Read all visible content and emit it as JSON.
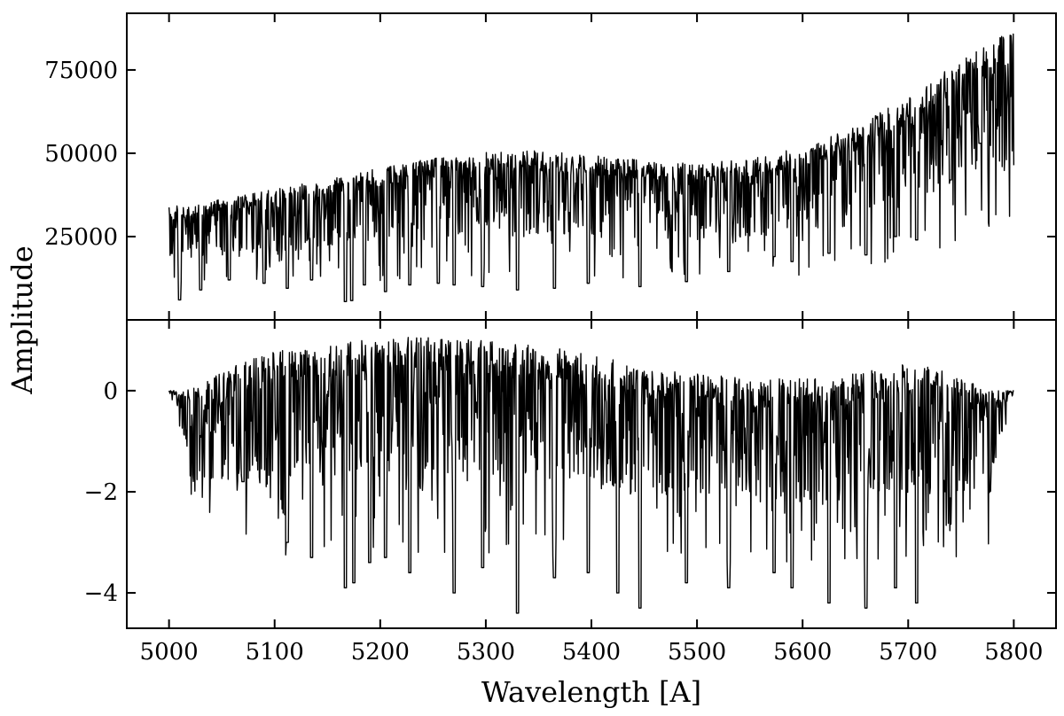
{
  "chart_data": {
    "type": "line",
    "xlabel": "Wavelength [A]",
    "ylabel": "Amplitude",
    "xlim": [
      4960,
      5840
    ],
    "x_ticks": [
      5000,
      5100,
      5200,
      5300,
      5400,
      5500,
      5600,
      5700,
      5800
    ],
    "x_range": [
      5000,
      5800
    ],
    "grid": false,
    "legend": "none",
    "line_color": "#000000",
    "panels": [
      {
        "ylim": [
          0,
          92000
        ],
        "y_ticks": [
          25000,
          50000,
          75000
        ],
        "continuum": [
          [
            5000,
            34500
          ],
          [
            5100,
            40000
          ],
          [
            5200,
            46500
          ],
          [
            5250,
            49500
          ],
          [
            5300,
            51500
          ],
          [
            5350,
            51800
          ],
          [
            5400,
            50500
          ],
          [
            5450,
            48800
          ],
          [
            5500,
            48000
          ],
          [
            5550,
            49500
          ],
          [
            5600,
            53000
          ],
          [
            5650,
            59000
          ],
          [
            5700,
            68500
          ],
          [
            5750,
            80000
          ],
          [
            5800,
            89000
          ]
        ],
        "absorption_lines": [
          [
            5010,
            6000
          ],
          [
            5030,
            9000
          ],
          [
            5057,
            12000
          ],
          [
            5090,
            11000
          ],
          [
            5112,
            9500
          ],
          [
            5135,
            12000
          ],
          [
            5167,
            5500
          ],
          [
            5173,
            5800
          ],
          [
            5185,
            10500
          ],
          [
            5205,
            8500
          ],
          [
            5228,
            10500
          ],
          [
            5255,
            11000
          ],
          [
            5270,
            10500
          ],
          [
            5297,
            10000
          ],
          [
            5330,
            9000
          ],
          [
            5365,
            9500
          ],
          [
            5397,
            11000
          ],
          [
            5446,
            10000
          ],
          [
            5490,
            11500
          ],
          [
            5530,
            14500
          ],
          [
            5573,
            19000
          ],
          [
            5590,
            17500
          ],
          [
            5625,
            20000
          ],
          [
            5660,
            19500
          ],
          [
            5688,
            25000
          ],
          [
            5708,
            24000
          ],
          [
            5740,
            42000
          ],
          [
            5768,
            53000
          ]
        ]
      },
      {
        "ylim": [
          -4.7,
          1.4
        ],
        "y_ticks": [
          -4,
          -2,
          0
        ],
        "continuum": [
          [
            5000,
            0
          ],
          [
            5030,
            0.2
          ],
          [
            5060,
            0.6
          ],
          [
            5100,
            0.9
          ],
          [
            5150,
            1.05
          ],
          [
            5200,
            1.15
          ],
          [
            5250,
            1.2
          ],
          [
            5300,
            1.1
          ],
          [
            5350,
            1.0
          ],
          [
            5400,
            0.85
          ],
          [
            5450,
            0.6
          ],
          [
            5500,
            0.45
          ],
          [
            5550,
            0.35
          ],
          [
            5600,
            0.35
          ],
          [
            5650,
            0.45
          ],
          [
            5700,
            0.65
          ],
          [
            5720,
            0.6
          ],
          [
            5750,
            0.35
          ],
          [
            5780,
            0.1
          ],
          [
            5800,
            0
          ]
        ],
        "absorption_lines": [
          [
            5070,
            -1.8
          ],
          [
            5112,
            -3.0
          ],
          [
            5135,
            -3.3
          ],
          [
            5167,
            -3.9
          ],
          [
            5175,
            -3.8
          ],
          [
            5190,
            -3.4
          ],
          [
            5205,
            -3.3
          ],
          [
            5228,
            -3.6
          ],
          [
            5270,
            -4.0
          ],
          [
            5297,
            -3.5
          ],
          [
            5330,
            -4.4
          ],
          [
            5365,
            -3.7
          ],
          [
            5397,
            -3.6
          ],
          [
            5425,
            -4.0
          ],
          [
            5446,
            -4.3
          ],
          [
            5490,
            -3.8
          ],
          [
            5530,
            -3.9
          ],
          [
            5573,
            -3.6
          ],
          [
            5590,
            -3.9
          ],
          [
            5625,
            -4.2
          ],
          [
            5660,
            -4.3
          ],
          [
            5688,
            -3.9
          ],
          [
            5708,
            -4.2
          ]
        ]
      }
    ]
  }
}
